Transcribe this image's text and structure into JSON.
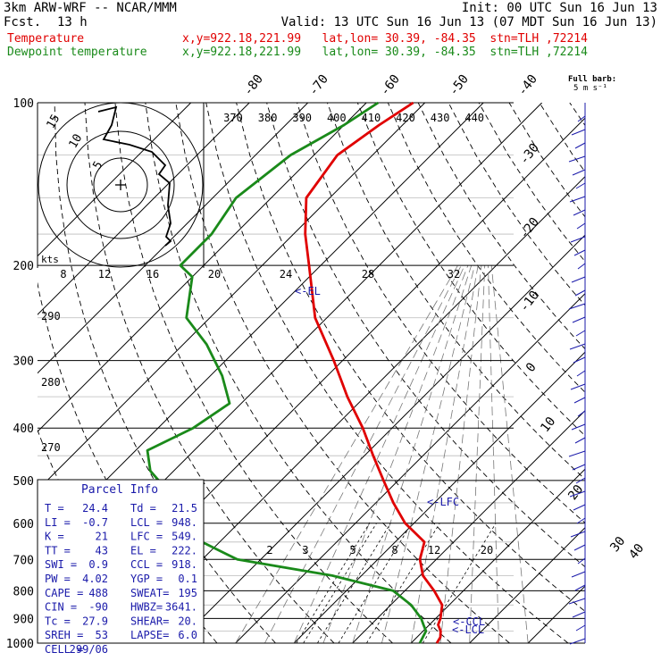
{
  "header": {
    "model": "3km ARW-WRF -- NCAR/MMM",
    "init": "Init: 00 UTC Sun 16 Jun 13",
    "fcst_label": "Fcst.",
    "fcst_value": "13 h",
    "valid": "Valid: 13 UTC Sun 16 Jun 13 (07 MDT Sun 16 Jun 13)",
    "temp_label": "Temperature",
    "temp_loc": "x,y=922.18,221.99   lat,lon= 30.39, -84.35  stn=TLH ,72214",
    "dew_label": "Dewpoint temperature",
    "dew_loc": "x,y=922.18,221.99   lat,lon= 30.39, -84.35  stn=TLH ,72214",
    "barb_title": "Full barb:",
    "barb_sub": "5 m s⁻¹"
  },
  "colors": {
    "temperature": "#e00000",
    "dewpoint": "#1a8a1a",
    "wind": "#1a1aaa"
  },
  "chart_data": {
    "type": "line",
    "pressure_levels": [
      100,
      200,
      300,
      400,
      500,
      600,
      700,
      800,
      900,
      1000
    ],
    "pressure_tick_labels": [
      "100",
      "200",
      "300",
      "400",
      "500",
      "600",
      "700",
      "800",
      "900",
      "1000"
    ],
    "isotherm_labels": [
      "-80",
      "-70",
      "-60",
      "-50",
      "-40",
      "-30",
      "-20",
      "-10",
      "0",
      "10",
      "20",
      "30",
      "40"
    ],
    "theta_labels": [
      "370",
      "380",
      "390",
      "400",
      "410",
      "420",
      "430",
      "440"
    ],
    "hodo_speed_labels": [
      "8",
      "12",
      "16",
      "20",
      "24",
      "28",
      "32"
    ],
    "hodo_kts": "kts",
    "hodo_ring_labels": [
      "5",
      "10",
      "15"
    ],
    "mixing_labels": [
      "2",
      "3",
      "5",
      "8",
      "12",
      "20"
    ],
    "thetae_left_labels": [
      "290",
      "280",
      "270"
    ],
    "level_markers": [
      "<-EL",
      "<-LFC",
      "<-CCL",
      "<-LCL"
    ],
    "temperature": {
      "p": [
        1000,
        975,
        950,
        925,
        900,
        850,
        800,
        750,
        700,
        650,
        600,
        550,
        500,
        450,
        400,
        350,
        300,
        250,
        200,
        175,
        150,
        125,
        110,
        100
      ],
      "t": [
        24.4,
        24.0,
        23.0,
        21.5,
        20.8,
        18.8,
        15.0,
        10.5,
        7.2,
        5.0,
        -1.5,
        -7.0,
        -12.5,
        -18.5,
        -25.0,
        -33.0,
        -41.5,
        -52.0,
        -62.0,
        -68.0,
        -74.0,
        -76.0,
        -74.0,
        -72.0
      ]
    },
    "dewpoint": {
      "p": [
        1000,
        975,
        950,
        925,
        900,
        850,
        800,
        750,
        700,
        650,
        630,
        610,
        590,
        560,
        520,
        480,
        440,
        400,
        360,
        320,
        280,
        250,
        210,
        200,
        175,
        150,
        125,
        110,
        100
      ],
      "t": [
        21.5,
        21.0,
        20.5,
        19.0,
        17.5,
        13.5,
        8.0,
        -5.0,
        -24.0,
        -33.0,
        -38.0,
        -36.5,
        -40.0,
        -42.0,
        -48.0,
        -54.0,
        -58.0,
        -54.0,
        -52.0,
        -58.0,
        -66.0,
        -74.0,
        -80.0,
        -84.0,
        -84.0,
        -86.0,
        -84.0,
        -80.0,
        -78.0
      ]
    },
    "parcel_info": {
      "title": "Parcel Info",
      "rows": [
        [
          "T  =",
          "24.4",
          "Td =",
          "21.5"
        ],
        [
          "LI =",
          "-0.7",
          "LCL =",
          "948."
        ],
        [
          "K  =",
          "21",
          "LFC =",
          "549."
        ],
        [
          "TT =",
          "43",
          "EL =",
          "222."
        ],
        [
          "SWI =",
          "0.9",
          "CCL =",
          "918."
        ],
        [
          "PW =",
          "4.02",
          "YGP =",
          "0.1"
        ],
        [
          "CAPE =",
          "488",
          "SWEAT=",
          "195"
        ],
        [
          "CIN =",
          "-90",
          "HWBZ=",
          "3641."
        ],
        [
          "Tc =",
          "27.9",
          "SHEAR=",
          "20."
        ],
        [
          "SREH =",
          "53",
          "LAPSE=",
          "6.0"
        ],
        [
          "CELL =",
          "299/06",
          "",
          ""
        ]
      ]
    }
  }
}
